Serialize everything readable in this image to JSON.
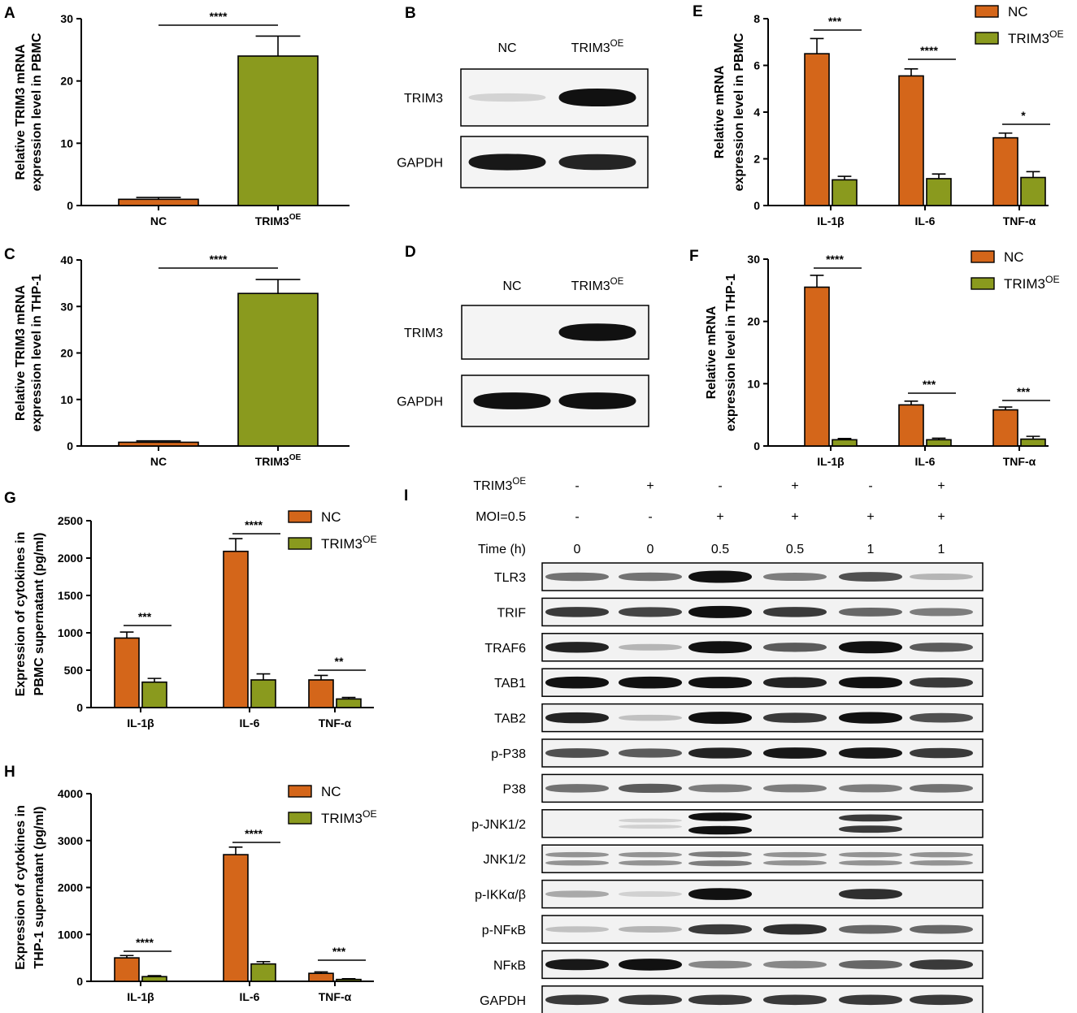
{
  "colors": {
    "nc": "#d4661a",
    "oe": "#8a9a1e",
    "axis": "#000000"
  },
  "chart_data": [
    {
      "id": "A",
      "type": "bar",
      "panel_label": "A",
      "ylabel": [
        "Relative TRIM3 mRNA",
        "expression level in PBMC"
      ],
      "categories": [
        "NC",
        "TRIM3"
      ],
      "category_sup": [
        "",
        "OE"
      ],
      "series": [
        {
          "key": "single",
          "values": [
            1.0,
            24.0
          ],
          "errors": [
            0.3,
            3.2
          ]
        }
      ],
      "ylim": [
        0,
        30
      ],
      "yticks": [
        0,
        10,
        20,
        30
      ],
      "significance": [
        {
          "from": 0,
          "to": 1,
          "label": "****"
        }
      ]
    },
    {
      "id": "C",
      "type": "bar",
      "panel_label": "C",
      "ylabel": [
        "Relative TRIM3 mRNA",
        "expression level in THP-1"
      ],
      "categories": [
        "NC",
        "TRIM3"
      ],
      "category_sup": [
        "",
        "OE"
      ],
      "series": [
        {
          "key": "single",
          "values": [
            0.8,
            32.8
          ],
          "errors": [
            0.3,
            3.0
          ]
        }
      ],
      "ylim": [
        0,
        40
      ],
      "yticks": [
        0,
        10,
        20,
        30,
        40
      ],
      "significance": [
        {
          "from": 0,
          "to": 1,
          "label": "****"
        }
      ]
    },
    {
      "id": "E",
      "type": "bar",
      "panel_label": "E",
      "ylabel": [
        "Relative  mRNA",
        "expression level in PBMC"
      ],
      "categories": [
        "IL-1β",
        "IL-6",
        "TNF-α"
      ],
      "series": [
        {
          "name": "NC",
          "values": [
            6.5,
            5.55,
            2.9
          ],
          "errors": [
            0.65,
            0.3,
            0.2
          ]
        },
        {
          "name": "TRIM3",
          "name_sup": "OE",
          "values": [
            1.1,
            1.15,
            1.2
          ],
          "errors": [
            0.15,
            0.2,
            0.25
          ]
        }
      ],
      "ylim": [
        0,
        8
      ],
      "yticks": [
        0,
        2,
        4,
        6,
        8
      ],
      "significance": [
        "***",
        "****",
        "*"
      ]
    },
    {
      "id": "F",
      "type": "bar",
      "panel_label": "F",
      "ylabel": [
        "Relative  mRNA",
        "expression level in THP-1"
      ],
      "categories": [
        "IL-1β",
        "IL-6",
        "TNF-α"
      ],
      "series": [
        {
          "name": "NC",
          "values": [
            25.5,
            6.6,
            5.8
          ],
          "errors": [
            1.9,
            0.6,
            0.45
          ]
        },
        {
          "name": "TRIM3",
          "name_sup": "OE",
          "values": [
            1.0,
            1.0,
            1.1
          ],
          "errors": [
            0.2,
            0.25,
            0.45
          ]
        }
      ],
      "ylim": [
        0,
        30
      ],
      "yticks": [
        0,
        10,
        20,
        30
      ],
      "significance": [
        "****",
        "***",
        "***"
      ]
    },
    {
      "id": "G",
      "type": "bar",
      "panel_label": "G",
      "ylabel": [
        "Expression of cytokines in",
        "PBMC supernatant  (pg/ml)"
      ],
      "categories": [
        "IL-1β",
        "IL-6",
        "TNF-α"
      ],
      "series": [
        {
          "name": "NC",
          "values": [
            930,
            2090,
            370
          ],
          "errors": [
            80,
            170,
            60
          ]
        },
        {
          "name": "TRIM3",
          "name_sup": "OE",
          "values": [
            340,
            370,
            115
          ],
          "errors": [
            50,
            80,
            20
          ]
        }
      ],
      "ylim": [
        0,
        2500
      ],
      "yticks": [
        0,
        500,
        1000,
        1500,
        2000,
        2500
      ],
      "significance": [
        "***",
        "****",
        "**"
      ]
    },
    {
      "id": "H",
      "type": "bar",
      "panel_label": "H",
      "ylabel": [
        "Expression of cytokines in",
        "THP-1 supernatant  (pg/ml)"
      ],
      "categories": [
        "IL-1β",
        "IL-6",
        "TNF-α"
      ],
      "series": [
        {
          "name": "NC",
          "values": [
            500,
            2700,
            170
          ],
          "errors": [
            50,
            160,
            30
          ]
        },
        {
          "name": "TRIM3",
          "name_sup": "OE",
          "values": [
            100,
            370,
            40
          ],
          "errors": [
            20,
            50,
            15
          ]
        }
      ],
      "ylim": [
        0,
        4000
      ],
      "yticks": [
        0,
        1000,
        2000,
        3000,
        4000
      ],
      "significance": [
        "****",
        "****",
        "***"
      ]
    }
  ],
  "blots": [
    {
      "id": "B",
      "panel_label": "B",
      "lanes": [
        {
          "text": "NC",
          "sup": ""
        },
        {
          "text": "TRIM3",
          "sup": "OE"
        }
      ],
      "rows": [
        {
          "label": "TRIM3",
          "bands": [
            0.02,
            1.0
          ]
        },
        {
          "label": "GAPDH",
          "bands": [
            0.85,
            0.8
          ]
        }
      ]
    },
    {
      "id": "D",
      "panel_label": "D",
      "lanes": [
        {
          "text": "NC",
          "sup": ""
        },
        {
          "text": "TRIM3",
          "sup": "OE"
        }
      ],
      "rows": [
        {
          "label": "TRIM3",
          "bands": [
            0.0,
            0.95
          ]
        },
        {
          "label": "GAPDH",
          "bands": [
            0.9,
            0.9
          ]
        }
      ]
    },
    {
      "id": "I",
      "panel_label": "I",
      "conditions": [
        {
          "label": "TRIM3",
          "sup": "OE",
          "values": [
            "-",
            "+",
            "-",
            "+",
            "-",
            "+"
          ]
        },
        {
          "label": "MOI=0.5",
          "sup": "",
          "values": [
            "-",
            "-",
            "+",
            "+",
            "+",
            "+"
          ]
        },
        {
          "label": "Time (h)",
          "sup": "",
          "values": [
            "0",
            "0",
            "0.5",
            "0.5",
            "1",
            "1"
          ]
        }
      ],
      "rows": [
        {
          "label": "TLR3",
          "bands": [
            0.45,
            0.45,
            1.0,
            0.4,
            0.6,
            0.15
          ]
        },
        {
          "label": "TRIF",
          "bands": [
            0.7,
            0.65,
            1.0,
            0.7,
            0.5,
            0.4
          ]
        },
        {
          "label": "TRAF6",
          "bands": [
            0.8,
            0.15,
            1.0,
            0.55,
            1.0,
            0.55
          ]
        },
        {
          "label": "TAB1",
          "bands": [
            0.95,
            0.95,
            0.9,
            0.8,
            0.9,
            0.7
          ]
        },
        {
          "label": "TAB2",
          "bands": [
            0.8,
            0.1,
            1.0,
            0.7,
            0.9,
            0.6
          ]
        },
        {
          "label": "p-P38",
          "bands": [
            0.6,
            0.55,
            0.8,
            0.85,
            0.85,
            0.7
          ]
        },
        {
          "label": "P38",
          "bands": [
            0.45,
            0.55,
            0.4,
            0.4,
            0.4,
            0.45
          ]
        },
        {
          "label": "p-JNK1/2",
          "bands": [
            0.0,
            0.02,
            1.0,
            0.0,
            0.7,
            0.0
          ],
          "double": true
        },
        {
          "label": "JNK1/2",
          "bands": [
            0.3,
            0.3,
            0.4,
            0.3,
            0.3,
            0.3
          ],
          "double": true
        },
        {
          "label": "p-IKKα/β",
          "bands": [
            0.2,
            0.02,
            0.95,
            0.0,
            0.75,
            0.0
          ]
        },
        {
          "label": "p-NFκB",
          "bands": [
            0.1,
            0.15,
            0.7,
            0.75,
            0.5,
            0.5
          ]
        },
        {
          "label": "NFκB",
          "bands": [
            0.85,
            0.95,
            0.35,
            0.35,
            0.5,
            0.7
          ]
        },
        {
          "label": "GAPDH",
          "bands": [
            0.7,
            0.7,
            0.7,
            0.7,
            0.7,
            0.7
          ]
        }
      ]
    }
  ]
}
